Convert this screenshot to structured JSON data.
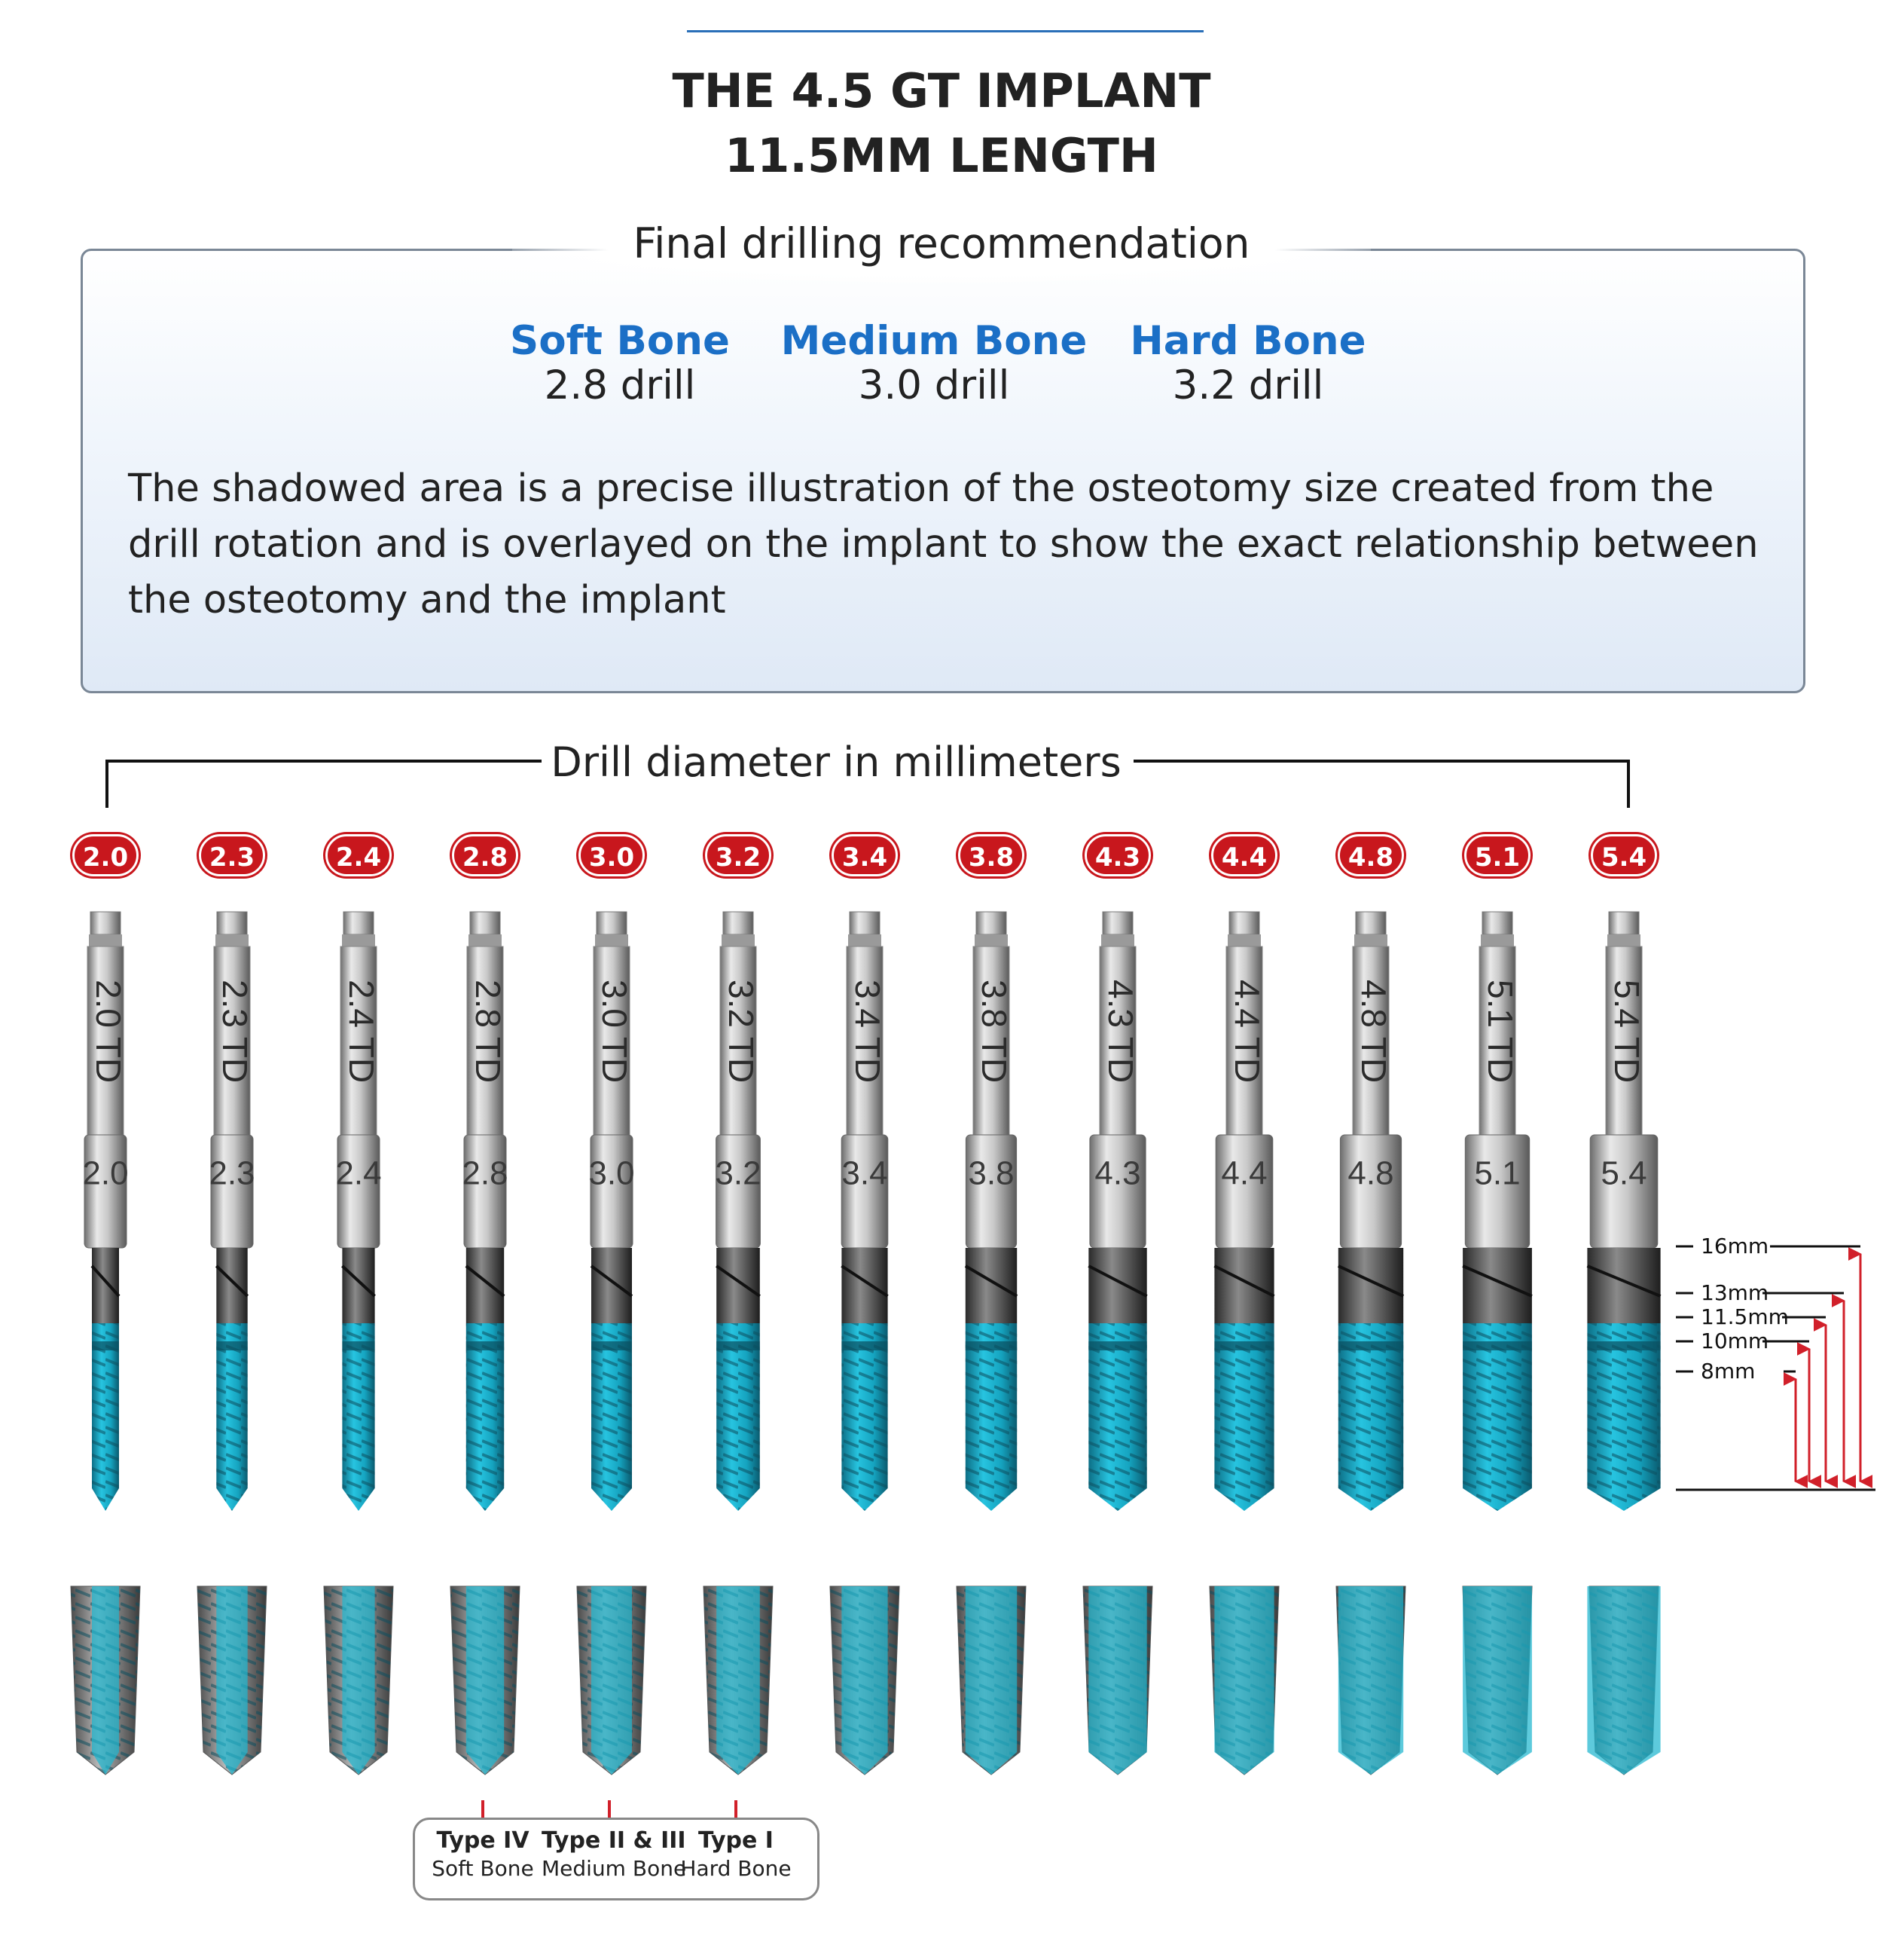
{
  "header": {
    "title_line1": "THE 4.5 GT IMPLANT",
    "title_line2": "11.5MM LENGTH"
  },
  "recommendation": {
    "title": "Final drilling recommendation",
    "bones": [
      {
        "name": "Soft Bone",
        "drill": "2.8 drill"
      },
      {
        "name": "Medium Bone",
        "drill": "3.0 drill"
      },
      {
        "name": "Hard Bone",
        "drill": "3.2 drill"
      }
    ],
    "description": "The shadowed area is a precise illustration of the osteotomy size created from the drill rotation and is overlayed on the implant to show the exact relationship between the osteotomy and the implant"
  },
  "drill_section": {
    "label": "Drill diameter in millimeters",
    "drills": [
      {
        "diameter": "2.0",
        "shank_text": "2.0 TD"
      },
      {
        "diameter": "2.3",
        "shank_text": "2.3 TD"
      },
      {
        "diameter": "2.4",
        "shank_text": "2.4 TD"
      },
      {
        "diameter": "2.8",
        "shank_text": "2.8 TD"
      },
      {
        "diameter": "3.0",
        "shank_text": "3.0 TD"
      },
      {
        "diameter": "3.2",
        "shank_text": "3.2 TD"
      },
      {
        "diameter": "3.4",
        "shank_text": "3.4 TD"
      },
      {
        "diameter": "3.8",
        "shank_text": "3.8 TD"
      },
      {
        "diameter": "4.3",
        "shank_text": "4.3 TD"
      },
      {
        "diameter": "4.4",
        "shank_text": "4.4 TD"
      },
      {
        "diameter": "4.8",
        "shank_text": "4.8 TD"
      },
      {
        "diameter": "5.1",
        "shank_text": "5.1 TD"
      },
      {
        "diameter": "5.4",
        "shank_text": "5.4 TD"
      }
    ],
    "depth_marks": [
      "16mm",
      "13mm",
      "11.5mm",
      "10mm",
      "8mm"
    ]
  },
  "bone_types": [
    {
      "type": "Type IV",
      "bone": "Soft Bone"
    },
    {
      "type": "Type II & III",
      "bone": "Medium Bone"
    },
    {
      "type": "Type I",
      "bone": "Hard Bone"
    }
  ],
  "colors": {
    "accent_blue": "#1b6fc6",
    "badge_red": "#c8171d",
    "osteotomy_cyan": "#1fb6cf",
    "arrow_red": "#d1202a"
  }
}
